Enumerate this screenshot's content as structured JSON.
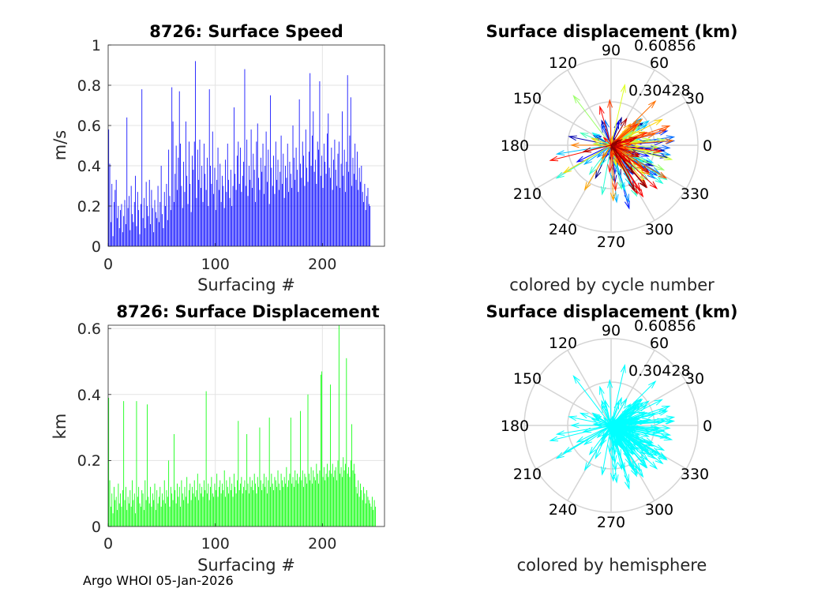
{
  "footer": "Argo WHOI 05-Jan-2026",
  "chart_data": [
    {
      "type": "bar",
      "title": "8726: Surface Speed",
      "xlabel": "Surfacing #",
      "ylabel": "m/s",
      "xlim": [
        0,
        258
      ],
      "ylim": [
        0,
        1
      ],
      "xticks": [
        "0",
        "100",
        "200"
      ],
      "yticks": [
        "0",
        "0.2",
        "0.4",
        "0.6",
        "0.8",
        "1"
      ],
      "color": "#0000ff",
      "n": 258,
      "values": [
        0.58,
        0.41,
        0.12,
        0.31,
        0.05,
        0.22,
        0.28,
        0.33,
        0.14,
        0.2,
        0.09,
        0.18,
        0.21,
        0.07,
        0.15,
        0.23,
        0.11,
        0.64,
        0.19,
        0.25,
        0.08,
        0.3,
        0.16,
        0.12,
        0.22,
        0.35,
        0.1,
        0.27,
        0.18,
        0.06,
        0.21,
        0.78,
        0.14,
        0.24,
        0.09,
        0.32,
        0.2,
        0.15,
        0.33,
        0.11,
        0.28,
        0.19,
        0.07,
        0.23,
        0.17,
        0.14,
        0.3,
        0.12,
        0.22,
        0.4,
        0.16,
        0.09,
        0.27,
        0.2,
        0.31,
        0.13,
        0.48,
        0.25,
        0.18,
        0.79,
        0.62,
        0.22,
        0.36,
        0.5,
        0.28,
        0.44,
        0.77,
        0.51,
        0.3,
        0.19,
        0.42,
        0.27,
        0.62,
        0.35,
        0.21,
        0.52,
        0.31,
        0.17,
        0.45,
        0.38,
        0.52,
        0.92,
        0.24,
        0.48,
        0.33,
        0.53,
        0.29,
        0.4,
        0.22,
        0.51,
        0.36,
        0.28,
        0.44,
        0.2,
        0.78,
        0.4,
        0.31,
        0.57,
        0.26,
        0.39,
        0.18,
        0.33,
        0.49,
        0.28,
        0.41,
        0.22,
        0.35,
        0.3,
        0.19,
        0.43,
        0.27,
        0.51,
        0.33,
        0.24,
        0.38,
        0.2,
        0.3,
        0.69,
        0.36,
        0.28,
        0.45,
        0.52,
        0.31,
        0.49,
        0.27,
        0.35,
        0.42,
        0.88,
        0.3,
        0.53,
        0.25,
        0.4,
        0.33,
        0.58,
        0.29,
        0.46,
        0.38,
        0.22,
        0.52,
        0.61,
        0.34,
        0.28,
        0.44,
        0.37,
        0.51,
        0.26,
        0.4,
        0.57,
        0.32,
        0.48,
        0.21,
        0.75,
        0.39,
        0.3,
        0.45,
        0.26,
        0.52,
        0.33,
        0.43,
        0.28,
        0.37,
        0.55,
        0.31,
        0.46,
        0.24,
        0.4,
        0.34,
        0.51,
        0.27,
        0.42,
        0.36,
        0.29,
        0.6,
        0.44,
        0.33,
        0.49,
        0.38,
        0.27,
        0.73,
        0.41,
        0.34,
        0.52,
        0.45,
        0.3,
        0.58,
        0.39,
        0.32,
        0.47,
        0.86,
        0.4,
        0.55,
        0.67,
        0.37,
        0.43,
        0.31,
        0.52,
        0.48,
        0.82,
        0.35,
        0.45,
        0.29,
        0.51,
        0.42,
        0.36,
        0.56,
        0.66,
        0.39,
        0.34,
        0.49,
        0.28,
        0.43,
        0.53,
        0.38,
        0.3,
        0.46,
        0.52,
        0.29,
        0.41,
        0.67,
        0.35,
        0.48,
        0.27,
        0.42,
        0.85,
        0.37,
        0.55,
        0.74,
        0.3,
        0.44,
        0.36,
        0.51,
        0.33,
        0.47,
        0.28,
        0.39,
        0.32,
        0.4,
        0.27,
        0.22,
        0.31,
        0.18,
        0.25,
        0.29,
        0.21,
        0.2
      ],
      "grid": true
    },
    {
      "type": "bar",
      "title": "8726: Surface Displacement",
      "xlabel": "Surfacing #",
      "ylabel": "km",
      "xlim": [
        0,
        258
      ],
      "ylim": [
        0,
        0.61
      ],
      "xticks": [
        "0",
        "100",
        "200"
      ],
      "yticks": [
        "0",
        "0.2",
        "0.4",
        "0.6"
      ],
      "color": "#00ff00",
      "n": 258,
      "values": [
        0.39,
        0.14,
        0.06,
        0.1,
        0.04,
        0.12,
        0.08,
        0.09,
        0.05,
        0.13,
        0.07,
        0.1,
        0.06,
        0.11,
        0.38,
        0.08,
        0.12,
        0.05,
        0.09,
        0.07,
        0.11,
        0.06,
        0.14,
        0.08,
        0.1,
        0.04,
        0.38,
        0.09,
        0.12,
        0.07,
        0.06,
        0.11,
        0.1,
        0.05,
        0.14,
        0.08,
        0.37,
        0.09,
        0.07,
        0.12,
        0.06,
        0.1,
        0.08,
        0.13,
        0.05,
        0.11,
        0.07,
        0.09,
        0.12,
        0.06,
        0.1,
        0.08,
        0.14,
        0.07,
        0.11,
        0.09,
        0.2,
        0.06,
        0.12,
        0.1,
        0.08,
        0.28,
        0.11,
        0.07,
        0.13,
        0.09,
        0.12,
        0.06,
        0.14,
        0.1,
        0.08,
        0.12,
        0.09,
        0.15,
        0.07,
        0.11,
        0.13,
        0.08,
        0.12,
        0.1,
        0.14,
        0.09,
        0.11,
        0.16,
        0.08,
        0.13,
        0.1,
        0.12,
        0.09,
        0.14,
        0.11,
        0.41,
        0.1,
        0.13,
        0.08,
        0.12,
        0.15,
        0.1,
        0.09,
        0.13,
        0.11,
        0.16,
        0.09,
        0.12,
        0.14,
        0.1,
        0.13,
        0.11,
        0.17,
        0.09,
        0.14,
        0.12,
        0.1,
        0.15,
        0.11,
        0.13,
        0.09,
        0.16,
        0.12,
        0.1,
        0.14,
        0.32,
        0.11,
        0.13,
        0.15,
        0.1,
        0.12,
        0.14,
        0.11,
        0.28,
        0.13,
        0.1,
        0.15,
        0.12,
        0.14,
        0.11,
        0.16,
        0.13,
        0.1,
        0.15,
        0.12,
        0.3,
        0.14,
        0.11,
        0.13,
        0.16,
        0.12,
        0.15,
        0.1,
        0.14,
        0.33,
        0.12,
        0.16,
        0.13,
        0.11,
        0.15,
        0.14,
        0.12,
        0.17,
        0.13,
        0.11,
        0.16,
        0.14,
        0.12,
        0.15,
        0.13,
        0.18,
        0.12,
        0.14,
        0.16,
        0.33,
        0.13,
        0.15,
        0.12,
        0.17,
        0.14,
        0.16,
        0.13,
        0.15,
        0.35,
        0.14,
        0.17,
        0.12,
        0.16,
        0.15,
        0.13,
        0.4,
        0.16,
        0.14,
        0.18,
        0.13,
        0.17,
        0.15,
        0.14,
        0.19,
        0.16,
        0.13,
        0.17,
        0.46,
        0.47,
        0.15,
        0.18,
        0.14,
        0.16,
        0.19,
        0.15,
        0.17,
        0.43,
        0.16,
        0.19,
        0.15,
        0.17,
        0.18,
        0.14,
        0.2,
        0.61,
        0.16,
        0.18,
        0.15,
        0.21,
        0.17,
        0.19,
        0.51,
        0.16,
        0.18,
        0.15,
        0.2,
        0.31,
        0.17,
        0.19,
        0.16,
        0.12,
        0.1,
        0.14,
        0.09,
        0.13,
        0.11,
        0.08,
        0.12,
        0.1,
        0.07,
        0.11,
        0.09,
        0.08,
        0.07,
        0.06,
        0.09,
        0.05,
        0.08,
        0.06
      ],
      "grid": true
    },
    {
      "type": "compass",
      "title": "Surface displacement (km)",
      "subtitle": "colored by cycle number",
      "rmax": 0.60856,
      "rticks": [
        "0.30428",
        "0.60856"
      ],
      "angle_ticks": [
        "0",
        "30",
        "60",
        "90",
        "120",
        "150",
        "180",
        "210",
        "240",
        "270",
        "300",
        "330"
      ],
      "colormap": "jet",
      "n": 258,
      "grid": true
    },
    {
      "type": "compass",
      "title": "Surface displacement (km)",
      "subtitle": "colored by hemisphere",
      "rmax": 0.60856,
      "rticks": [
        "0.30428",
        "0.60856"
      ],
      "angle_ticks": [
        "0",
        "30",
        "60",
        "90",
        "120",
        "150",
        "180",
        "210",
        "240",
        "270",
        "300",
        "330"
      ],
      "color": "#00ffff",
      "n": 258,
      "grid": true
    }
  ]
}
